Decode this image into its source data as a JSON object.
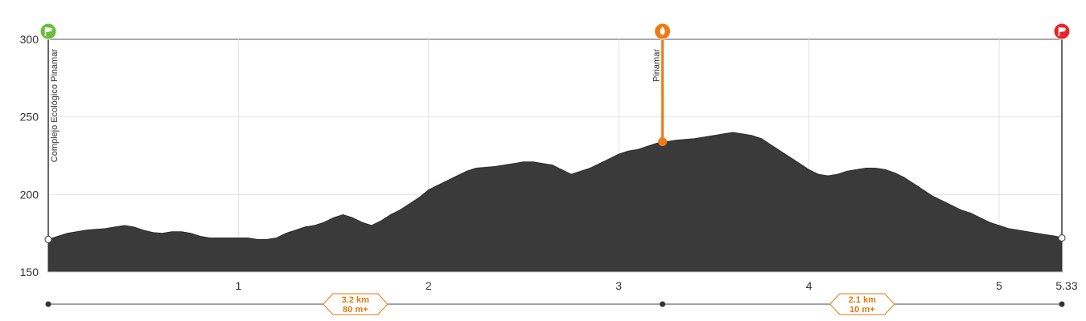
{
  "chart_data": {
    "type": "area",
    "title": "",
    "xlabel": "",
    "ylabel": "",
    "xlim": [
      0,
      5.33
    ],
    "ylim": [
      150,
      300
    ],
    "y_ticks": [
      150,
      200,
      250,
      300
    ],
    "x_tick_labels": [
      "1",
      "2",
      "3",
      "4",
      "5",
      "5.33"
    ],
    "x_tick_values": [
      1,
      2,
      3,
      4,
      5,
      5.33
    ],
    "grid": true,
    "colors": {
      "fill": "#3a3a3a",
      "grid": "#e2e2e2",
      "axis": "#555555",
      "start_marker": "#6abf3a",
      "waypoint_marker": "#f07a14",
      "end_marker": "#e8262a",
      "segment_badge": "#e07a10"
    },
    "series": [
      {
        "x": [
          0,
          0.05,
          0.1,
          0.15,
          0.2,
          0.25,
          0.3,
          0.35,
          0.4,
          0.45,
          0.5,
          0.55,
          0.6,
          0.65,
          0.7,
          0.75,
          0.8,
          0.85,
          0.9,
          0.95,
          1.0,
          1.05,
          1.1,
          1.15,
          1.2,
          1.25,
          1.3,
          1.35,
          1.4,
          1.45,
          1.5,
          1.55,
          1.6,
          1.65,
          1.7,
          1.75,
          1.8,
          1.85,
          1.9,
          1.95,
          2.0,
          2.05,
          2.1,
          2.15,
          2.2,
          2.25,
          2.3,
          2.35,
          2.4,
          2.45,
          2.5,
          2.55,
          2.6,
          2.65,
          2.7,
          2.75,
          2.8,
          2.85,
          2.9,
          2.95,
          3.0,
          3.05,
          3.1,
          3.15,
          3.2,
          3.25,
          3.3,
          3.35,
          3.4,
          3.45,
          3.5,
          3.55,
          3.6,
          3.65,
          3.7,
          3.75,
          3.8,
          3.85,
          3.9,
          3.95,
          4.0,
          4.05,
          4.1,
          4.15,
          4.2,
          4.25,
          4.3,
          4.35,
          4.4,
          4.45,
          4.5,
          4.55,
          4.6,
          4.65,
          4.7,
          4.75,
          4.8,
          4.85,
          4.9,
          4.95,
          5.0,
          5.05,
          5.1,
          5.15,
          5.2,
          5.25,
          5.3,
          5.33
        ],
        "y": [
          171,
          173,
          175,
          176,
          177,
          177.5,
          178,
          179,
          180,
          179,
          177,
          175.5,
          175,
          176,
          176,
          175,
          173,
          172,
          172,
          172,
          172,
          172,
          171,
          171,
          172,
          175,
          177,
          179,
          180,
          182,
          185,
          187,
          185,
          182,
          180,
          183,
          187,
          190,
          194,
          198,
          203,
          206,
          209,
          212,
          215,
          217,
          217.5,
          218,
          219,
          220,
          221,
          221,
          220,
          219,
          216,
          213,
          215,
          217,
          220,
          223,
          226,
          228,
          229,
          231,
          233,
          234,
          235,
          235.5,
          236,
          237,
          238,
          239,
          240,
          239,
          238,
          236,
          232,
          228,
          224,
          220,
          216,
          213,
          212,
          213,
          215,
          216,
          217,
          217,
          216,
          214,
          211,
          207,
          203,
          199,
          196,
          193,
          190,
          188,
          185,
          182,
          180,
          178,
          177,
          176,
          175,
          174,
          173,
          172
        ]
      }
    ],
    "waypoints": [
      {
        "name": "Complejo Ecológico Pinamar",
        "x": 0,
        "y": 171,
        "type": "start"
      },
      {
        "name": "Pinamar",
        "x": 3.23,
        "y": 234,
        "type": "water"
      },
      {
        "name": "",
        "x": 5.33,
        "y": 172,
        "type": "end"
      }
    ],
    "segments": [
      {
        "from": 0,
        "to": 3.23,
        "distance": "3.2 km",
        "gain": "80 m+"
      },
      {
        "from": 3.23,
        "to": 5.33,
        "distance": "2.1 km",
        "gain": "10 m+"
      }
    ]
  }
}
